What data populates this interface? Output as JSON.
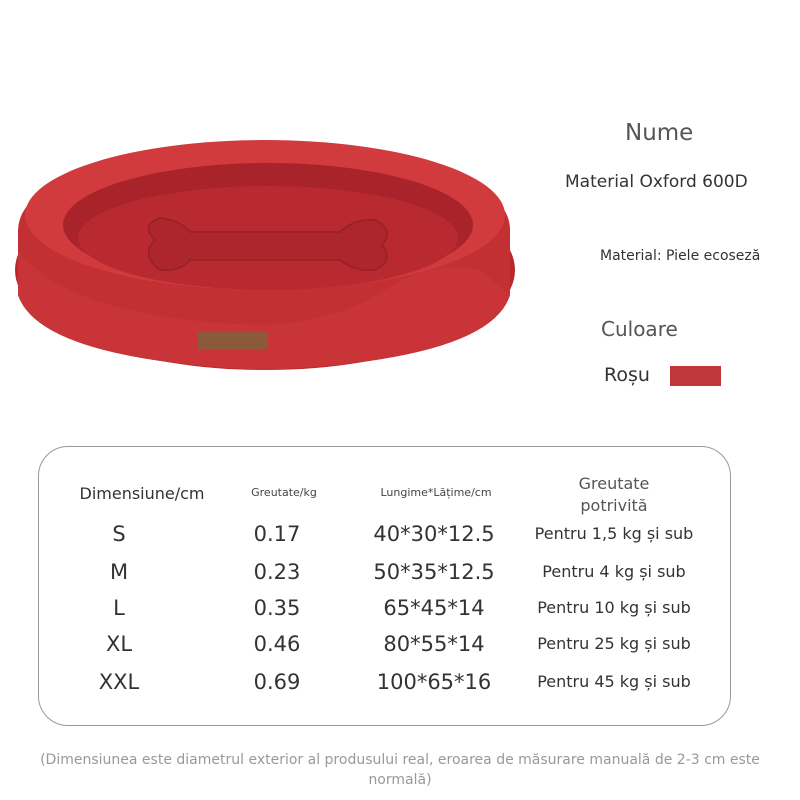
{
  "product": {
    "name_label": "Nume",
    "name_value": "Material Oxford 600D",
    "material": "Material: Piele ecoseză",
    "color_label": "Culoare",
    "color_value": "Roșu",
    "color_swatch": "#c0363a"
  },
  "size_table": {
    "headers": [
      "Dimensiune/cm",
      "Greutate/kg",
      "Lungime*Lățime/cm",
      "Greutate potrivită"
    ],
    "rows": [
      [
        "S",
        "0.17",
        "40*30*12.5",
        "Pentru 1,5 kg și sub"
      ],
      [
        "M",
        "0.23",
        "50*35*12.5",
        "Pentru 4 kg și sub"
      ],
      [
        "L",
        "0.35",
        "65*45*14",
        "Pentru 10 kg și sub"
      ],
      [
        "XL",
        "0.46",
        "80*55*14",
        "Pentru 25 kg și sub"
      ],
      [
        "XXL",
        "0.69",
        "100*65*16",
        "Pentru 45 kg și sub"
      ]
    ]
  },
  "footnote": "(Dimensiunea este diametrul exterior al produsului real, eroarea de măsurare manuală de 2-3 cm este normală)"
}
